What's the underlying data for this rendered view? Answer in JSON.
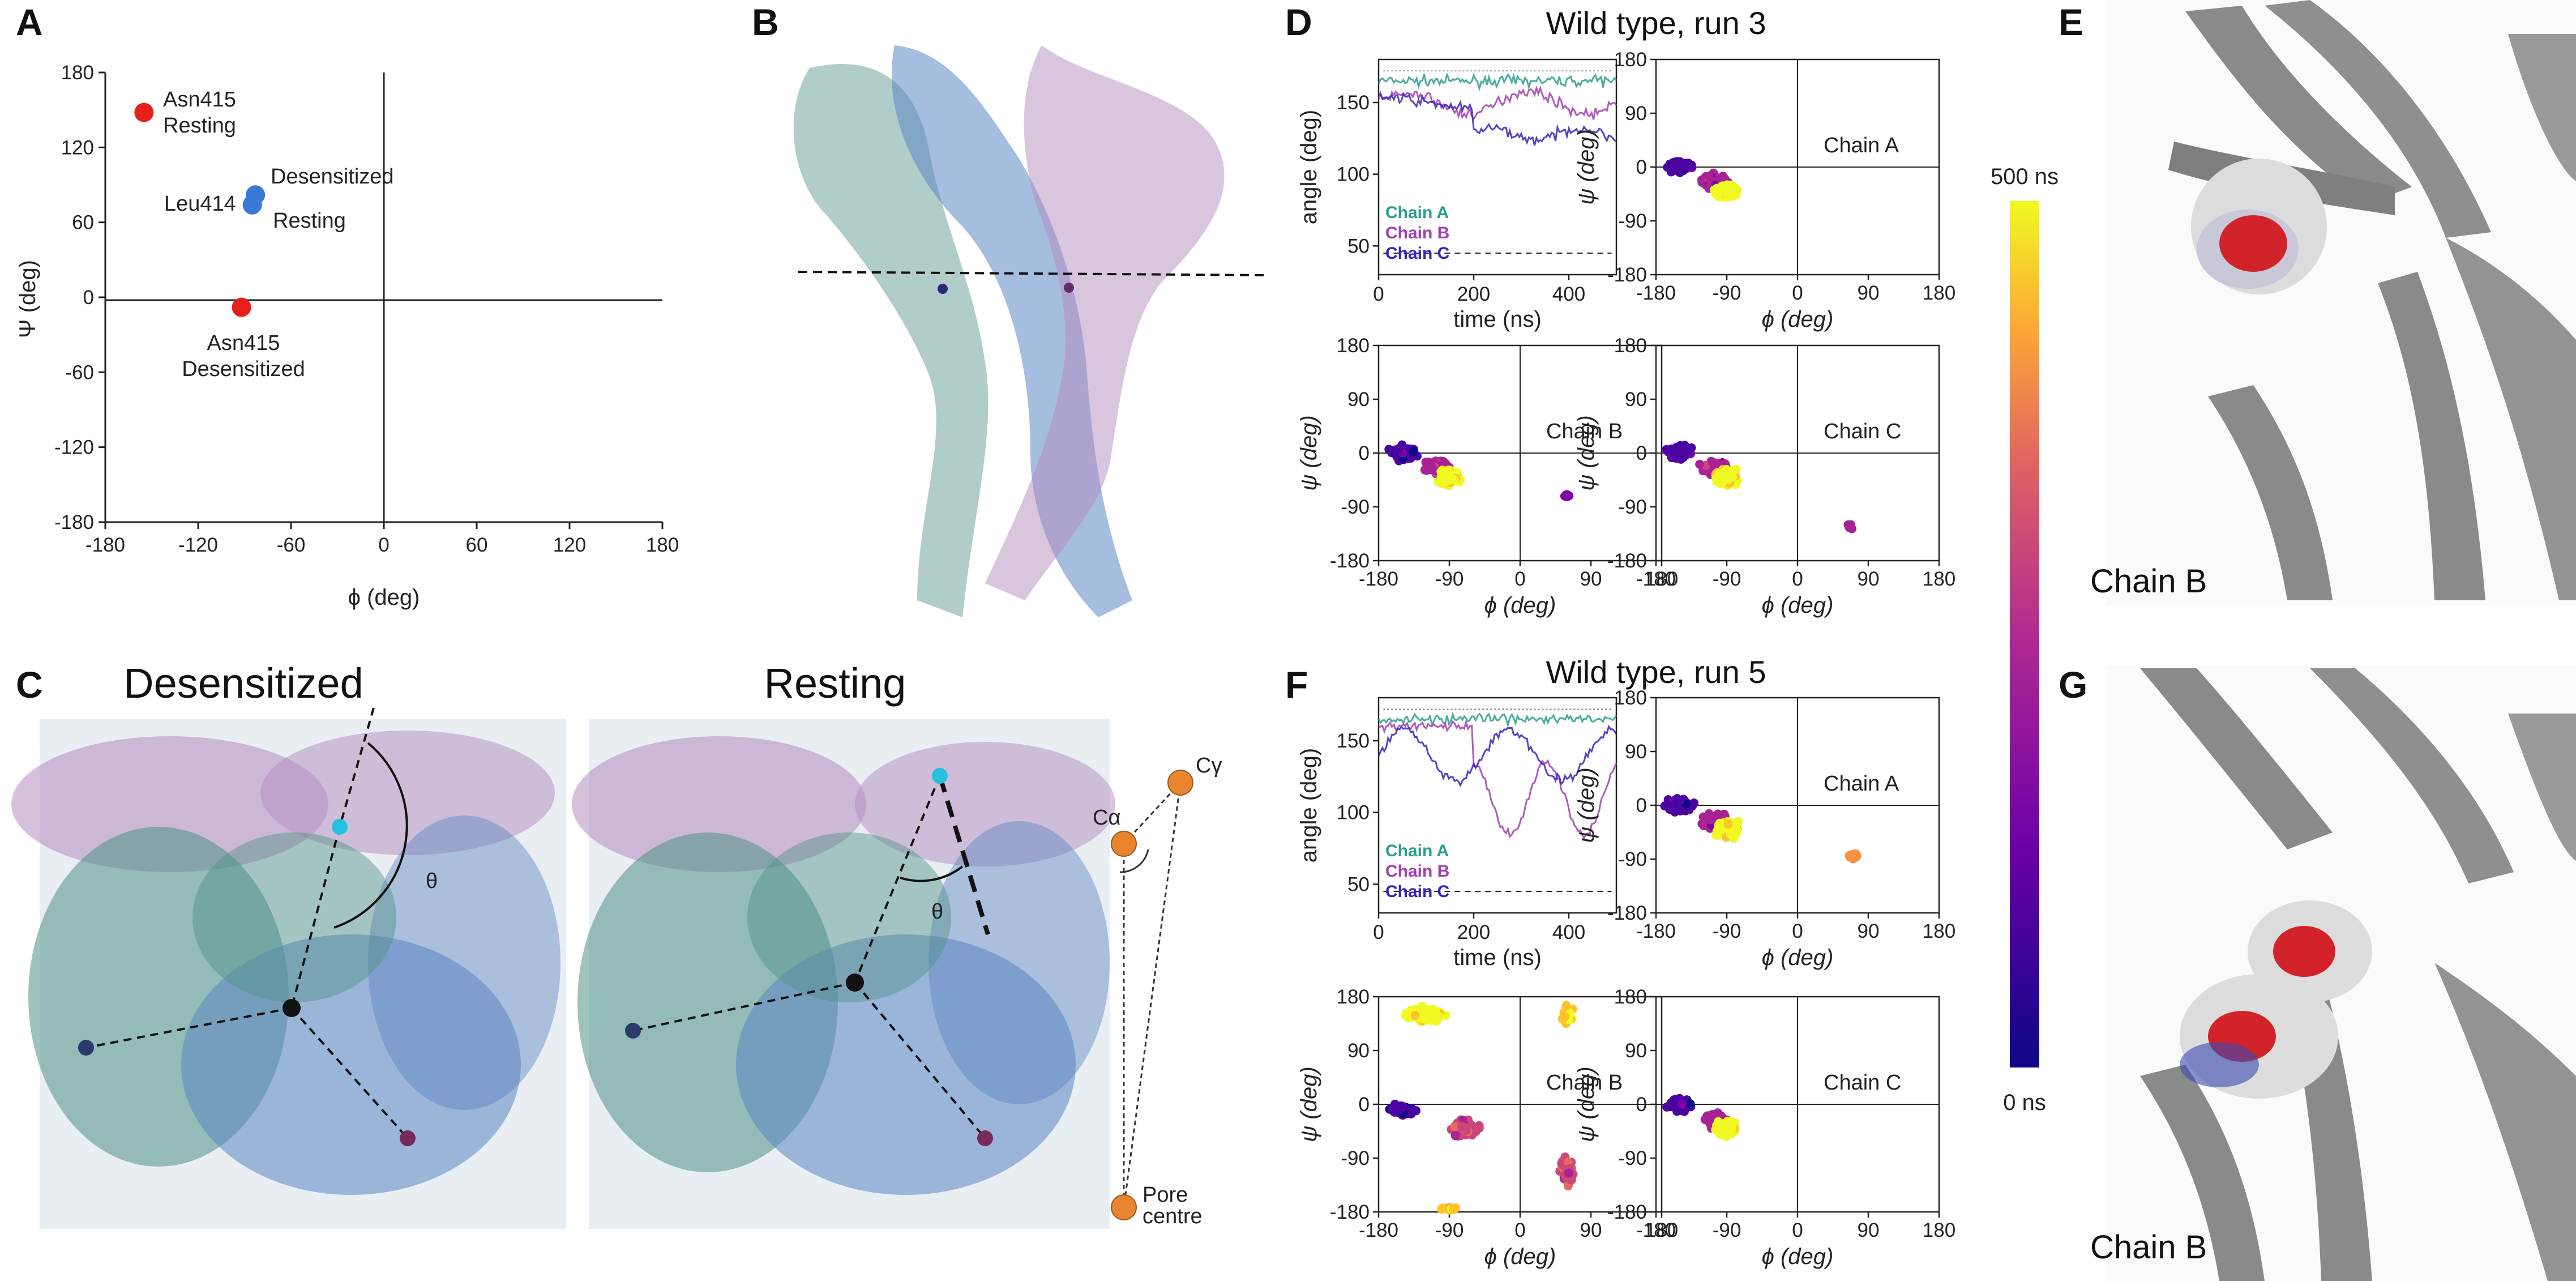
{
  "panel_labels": {
    "A": "A",
    "B": "B",
    "C": "C",
    "D": "D",
    "E": "E",
    "F": "F",
    "G": "G"
  },
  "colors": {
    "red": "#e8201b",
    "blue": "#3a78d6",
    "chainA": "#2a9d8f",
    "chainB": "#a43cb4",
    "chainC": "#3b22b8",
    "protein_teal": "#4f9187",
    "protein_blue": "#5b86c2",
    "protein_purple": "#b48cbd",
    "orange": "#e8852e",
    "grey": "#8a8a8a"
  },
  "panelA": {
    "xlabel": "ϕ (deg)",
    "ylabel": "Ψ (deg)",
    "xticks": [
      "-180",
      "-120",
      "-60",
      "0",
      "60",
      "120",
      "180"
    ],
    "yticks": [
      "180",
      "120",
      "60",
      "0",
      "-60",
      "-120",
      "-180"
    ]
  },
  "chart_data": [
    {
      "type": "scatter",
      "panel": "A",
      "xlabel": "ϕ (deg)",
      "ylabel": "Ψ (deg)",
      "xlim": [
        -180,
        180
      ],
      "ylim": [
        -180,
        180
      ],
      "points": [
        {
          "residue": "Asn415",
          "state": "Resting",
          "phi": -155,
          "psi": 148,
          "color": "#e8201b"
        },
        {
          "residue": "Asn415",
          "state": "Desensitized",
          "phi": -92,
          "psi": -8,
          "color": "#e8201b"
        },
        {
          "residue": "Leu414",
          "state": "Desensitized",
          "phi": -83,
          "psi": 82,
          "color": "#3a78d6"
        },
        {
          "residue": "Leu414",
          "state": "Resting",
          "phi": -85,
          "psi": 74,
          "color": "#3a78d6"
        }
      ]
    },
    {
      "type": "line",
      "panel": "D",
      "title": "Wild type, run 3",
      "xlabel": "time (ns)",
      "ylabel": "angle (deg)",
      "xlim": [
        0,
        500
      ],
      "ylim": [
        30,
        180
      ],
      "series": [
        {
          "name": "Chain A",
          "mean": 165
        },
        {
          "name": "Chain B",
          "mean": 155
        },
        {
          "name": "Chain C",
          "mean": 135
        }
      ]
    },
    {
      "type": "line",
      "panel": "F",
      "title": "Wild type, run 5",
      "xlabel": "time (ns)",
      "ylabel": "angle (deg)",
      "xlim": [
        0,
        500
      ],
      "ylim": [
        30,
        180
      ],
      "series": [
        {
          "name": "Chain A",
          "mean": 165
        },
        {
          "name": "Chain B",
          "mean": 120
        },
        {
          "name": "Chain C",
          "mean": 140
        }
      ]
    },
    {
      "type": "scatter",
      "panel": "D/F Ramachandran",
      "xlabel": "ϕ (deg)",
      "ylabel": "ψ (deg)",
      "xlim": [
        -180,
        180
      ],
      "ylim": [
        -180,
        180
      ],
      "colorbar": {
        "min_label": "0 ns",
        "max_label": "500 ns"
      }
    }
  ],
  "annotations": {
    "asn415_resting": [
      "Asn415",
      "Resting"
    ],
    "leu414": "Leu414",
    "desensitized_label": "Desensitized",
    "resting_label": "Resting",
    "asn415_desens": [
      "Asn415",
      "Desensitized"
    ]
  },
  "panelC": {
    "left_title": "Desensitized",
    "right_title": "Resting",
    "theta": "θ",
    "calpha": "Cα",
    "cgamma": "Cγ",
    "pore": [
      "Pore",
      "centre"
    ]
  },
  "panelD": {
    "title": "Wild type, run 3",
    "chainA": "Chain A",
    "chainB": "Chain B",
    "chainC": "Chain C"
  },
  "panelF": {
    "title": "Wild type, run 5",
    "chainA": "Chain A",
    "chainB": "Chain B",
    "chainC": "Chain C"
  },
  "line_axes": {
    "ylabel": "angle (deg)",
    "xlabel": "time (ns)",
    "yticks": [
      "150",
      "100",
      "50"
    ],
    "xticks": [
      "0",
      "200",
      "400"
    ]
  },
  "rama_axes": {
    "xlabel": "ϕ (deg)",
    "ylabel": "ψ (deg)",
    "xticks": [
      "-180",
      "-90",
      "0",
      "90",
      "180"
    ],
    "yticks": [
      "180",
      "90",
      "0",
      "-90",
      "-180"
    ]
  },
  "colorbar": {
    "max": "500 ns",
    "min": "0 ns"
  },
  "chainB_labels": {
    "E": "Chain B",
    "G": "Chain B"
  }
}
